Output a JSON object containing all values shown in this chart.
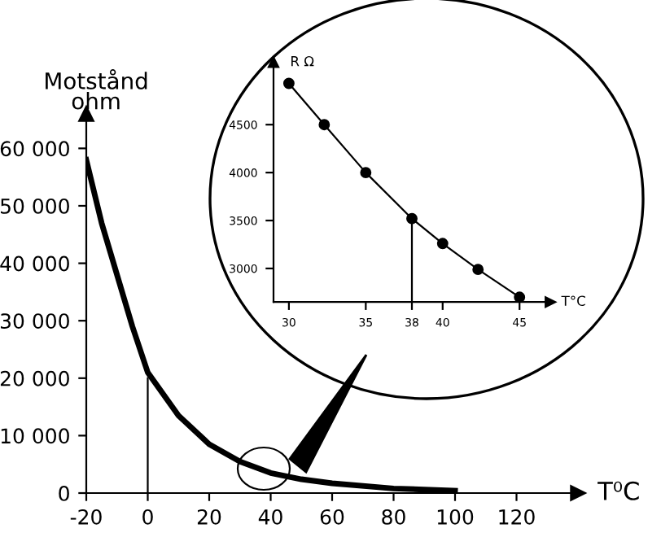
{
  "chart_data": [
    {
      "type": "line",
      "xlabel": "T⁰C",
      "ylabel": "Motstånd\nohm",
      "xlim": [
        -20,
        140
      ],
      "ylim": [
        0,
        66000
      ],
      "xticks": [
        -20,
        0,
        20,
        40,
        60,
        80,
        100,
        120
      ],
      "yticks": [
        0,
        {
          "value": 10000,
          "label": "10 000"
        },
        {
          "value": 20000,
          "label": "20 000"
        },
        {
          "value": 30000,
          "label": "30 000"
        },
        {
          "value": 40000,
          "label": "40 000"
        },
        {
          "value": 50000,
          "label": "50 000"
        },
        {
          "value": 60000,
          "label": "60 000"
        }
      ],
      "grid": false,
      "legend": false,
      "marker": "none",
      "series": [
        {
          "color": "#000000",
          "x": [
            -20,
            -15,
            -10,
            -5,
            0,
            10,
            20,
            30,
            40,
            50,
            60,
            80,
            100
          ],
          "values": [
            58000,
            47000,
            38000,
            29000,
            21000,
            13500,
            8500,
            5500,
            3500,
            2400,
            1700,
            800,
            400
          ]
        },
        {
          "color": "#000000",
          "x": [
            0,
            0
          ],
          "values": [
            0,
            20000
          ]
        }
      ]
    },
    {
      "type": "line",
      "xlabel": "T°C",
      "ylabel": "R Ω",
      "xlim": [
        29,
        47
      ],
      "ylim": [
        2650,
        5150
      ],
      "xticks": [
        30,
        35,
        38,
        40,
        45
      ],
      "yticks": [
        3000,
        3500,
        4000,
        4500
      ],
      "grid": false,
      "legend": false,
      "marker": "circle",
      "series": [
        {
          "color": "#000000",
          "x": [
            30,
            32.3,
            35,
            38,
            40,
            42.3,
            45
          ],
          "values": [
            4930,
            4500,
            4000,
            3520,
            3260,
            2990,
            2700
          ]
        },
        {
          "color": "#000000",
          "x": [
            38,
            38
          ],
          "values": [
            2650,
            3520
          ],
          "marker": "none"
        }
      ]
    }
  ]
}
